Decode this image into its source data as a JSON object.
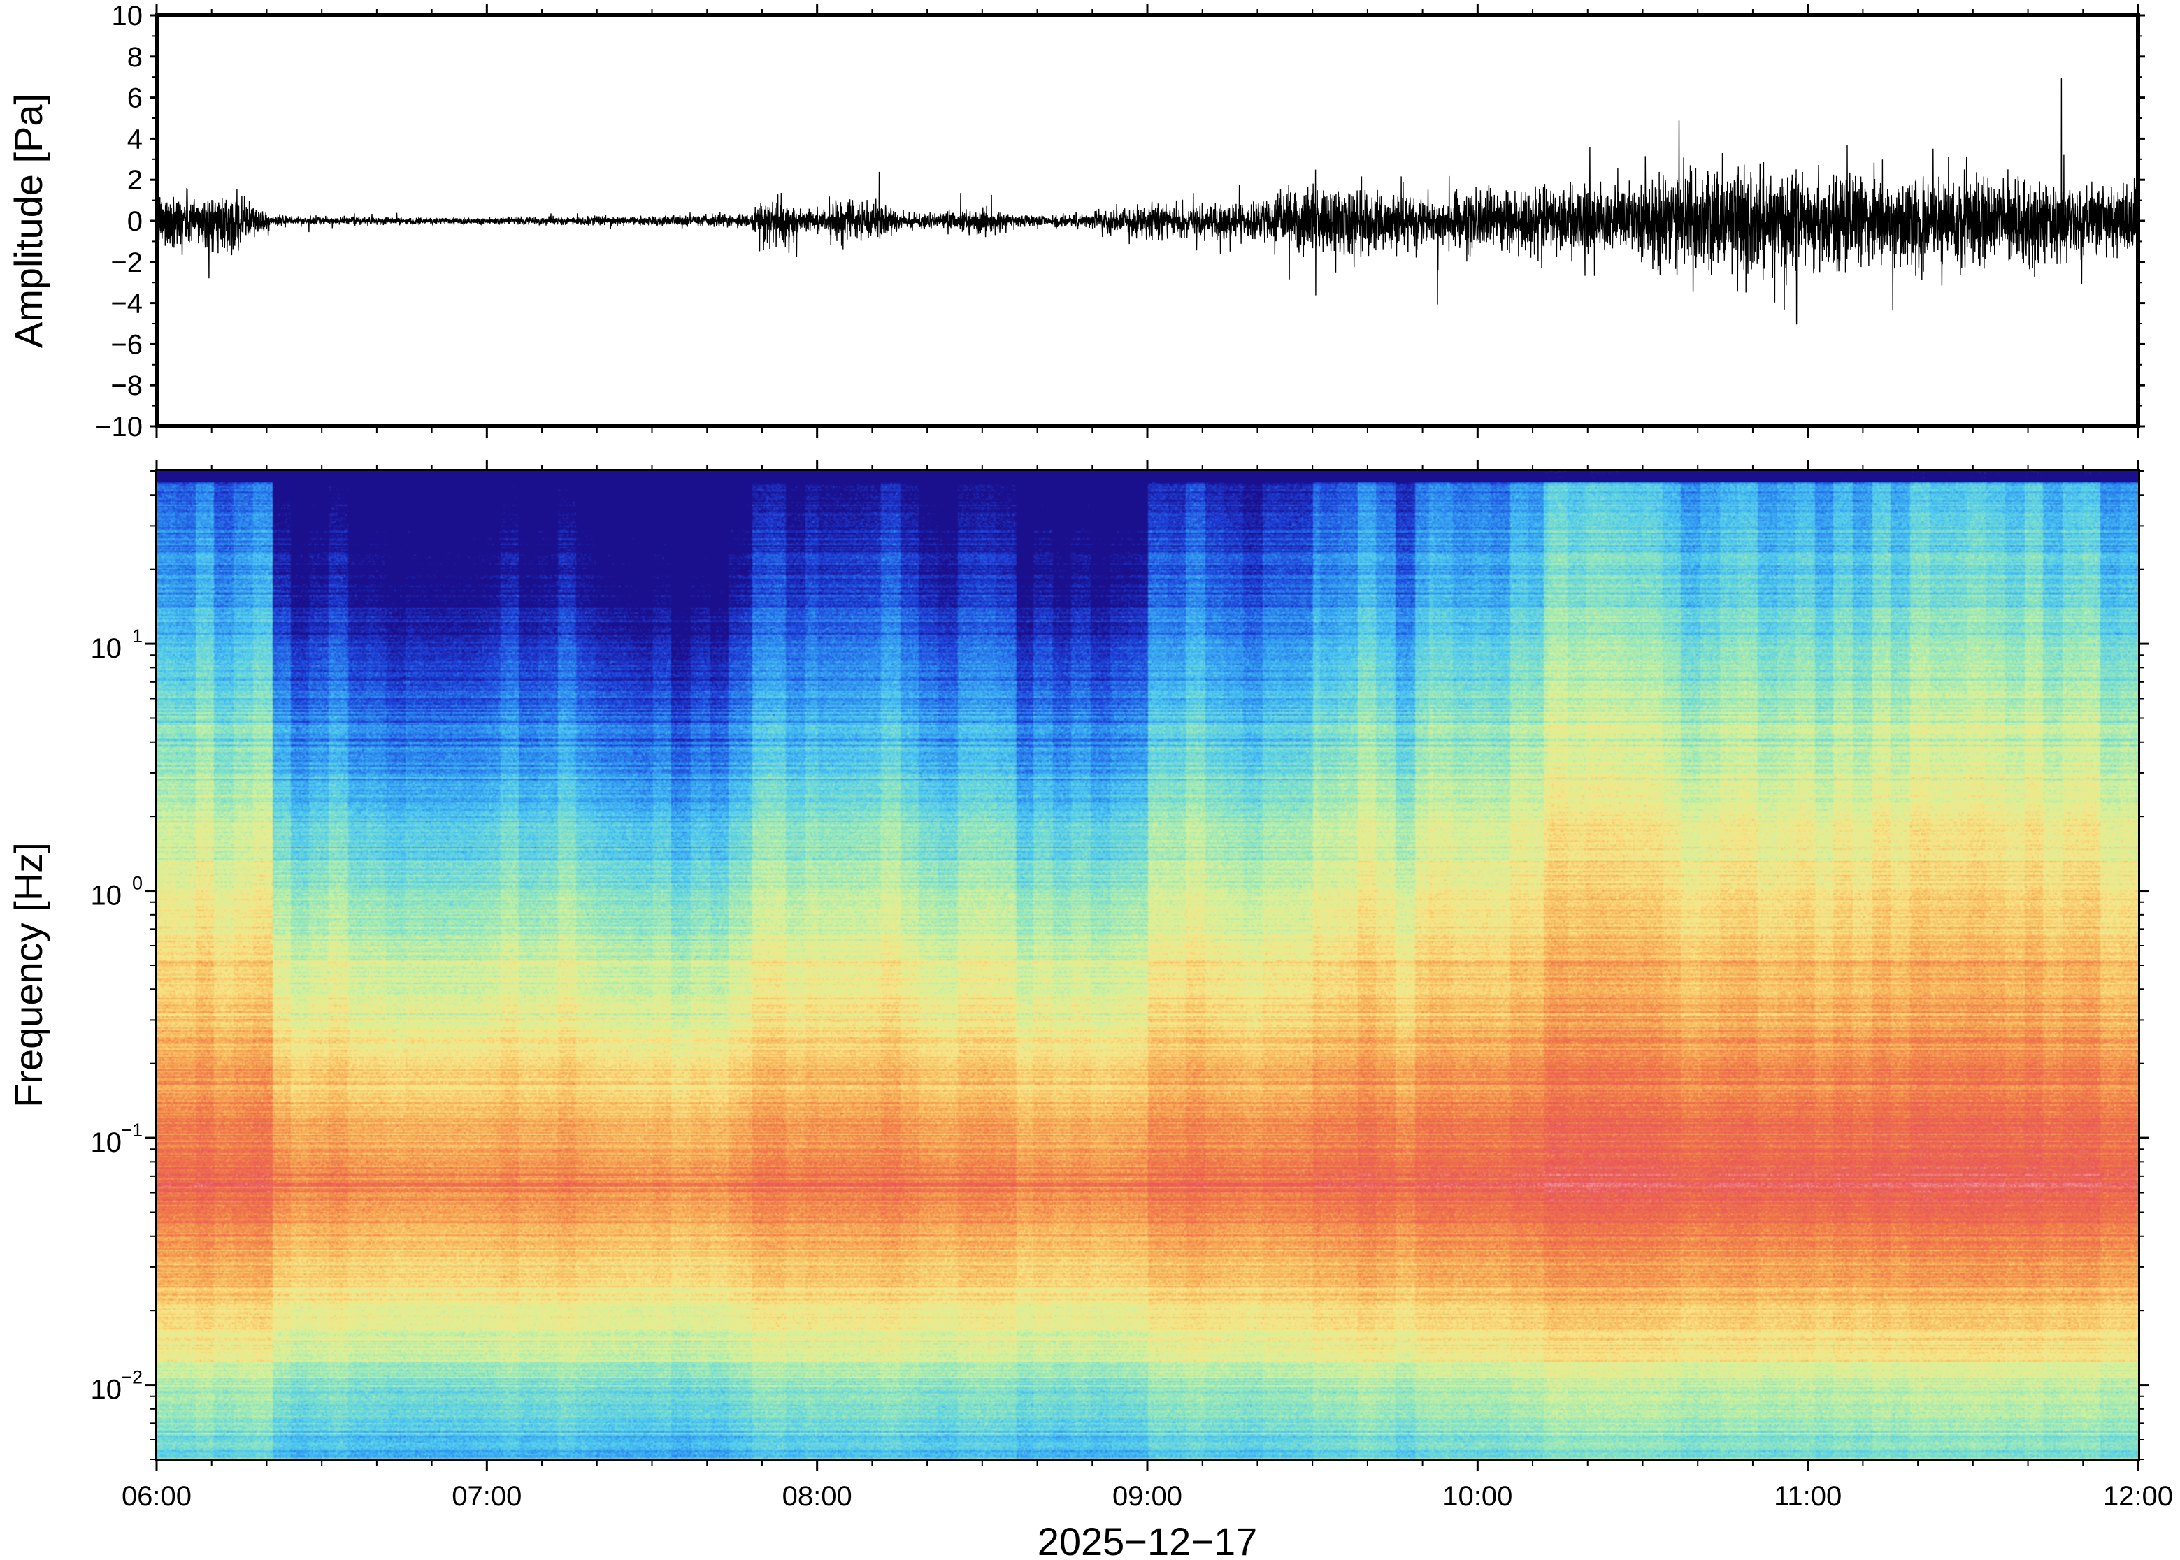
{
  "chart_data": [
    {
      "type": "line",
      "panel": "waveform",
      "ylabel": "Amplitude [Pa]",
      "ylim": [
        -10,
        10
      ],
      "yticks": [
        10,
        8,
        6,
        4,
        2,
        0,
        -2,
        -4,
        -6,
        -8,
        -10
      ],
      "ytick_labels": [
        "10",
        "8",
        "6",
        "4",
        "2",
        "0",
        "−2",
        "−4",
        "−6",
        "−8",
        "−10"
      ],
      "xlim": [
        "06:00",
        "12:00"
      ],
      "series": [
        {
          "color": "#000000",
          "envelope_hours": [
            6.0,
            6.25,
            6.35,
            6.5,
            7.0,
            7.5,
            7.8,
            7.85,
            8.0,
            8.1,
            8.3,
            8.5,
            8.6,
            8.8,
            9.0,
            9.3,
            9.5,
            9.6,
            9.8,
            9.9,
            10.0,
            10.5,
            10.75,
            11.0,
            11.5,
            12.0
          ],
          "envelope_pa": [
            1.6,
            1.4,
            0.3,
            0.2,
            0.2,
            0.25,
            0.4,
            1.5,
            0.5,
            1.2,
            0.4,
            0.7,
            0.3,
            0.4,
            0.9,
            1.0,
            1.8,
            2.0,
            1.4,
            1.2,
            1.6,
            2.2,
            3.0,
            2.6,
            2.4,
            2.0
          ]
        }
      ]
    },
    {
      "type": "heatmap",
      "panel": "spectrogram",
      "ylabel": "Frequency [Hz]",
      "xlabel": "2025−12−17",
      "yscale": "log",
      "ylim": [
        0.005,
        50
      ],
      "yticks": [
        {
          "value": 10,
          "base": "10",
          "exp": "1"
        },
        {
          "value": 1,
          "base": "10",
          "exp": "0"
        },
        {
          "value": 0.1,
          "base": "10",
          "exp": "−1"
        },
        {
          "value": 0.01,
          "base": "10",
          "exp": "−2"
        }
      ],
      "xlim": [
        "06:00",
        "12:00"
      ],
      "xticks": [
        "06:00",
        "07:00",
        "08:00",
        "09:00",
        "10:00",
        "11:00",
        "12:00"
      ],
      "colormap": "spectral",
      "colors": [
        "#1a0f8c",
        "#1e3fd8",
        "#2c8cf0",
        "#4ec9f0",
        "#8fe6c0",
        "#d6f29a",
        "#f9e586",
        "#f8b45a",
        "#f07848",
        "#e8545a",
        "#f2a2a8"
      ],
      "notes_intensity": "low frequencies (0.03–0.3 Hz) most energetic, increasing after 09:30; quiet band 07:00–09:00 above 1 Hz"
    }
  ]
}
